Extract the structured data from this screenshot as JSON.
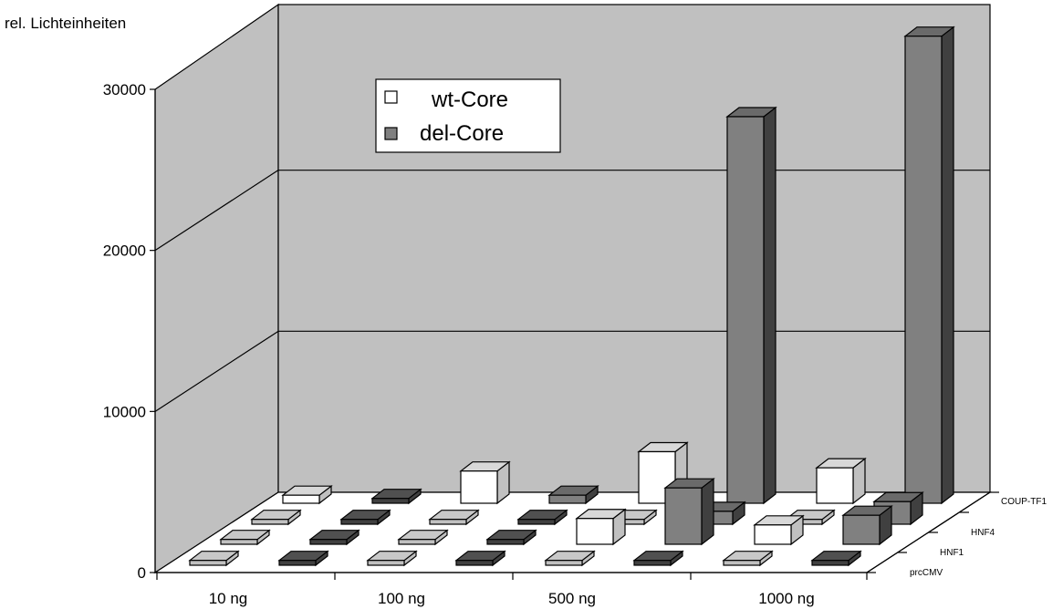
{
  "chart_data": {
    "type": "bar",
    "title": "",
    "ylabel": "rel. Lichteinheiten",
    "ylim": [
      0,
      30000
    ],
    "yticks": [
      "0",
      "10000",
      "20000",
      "30000"
    ],
    "categories": [
      "10 ng",
      "100 ng",
      "500 ng",
      "1000 ng"
    ],
    "depth_series": [
      "prcCMV",
      "HNF1",
      "HNF4",
      "COUP-TF1"
    ],
    "legend": {
      "position": "upper-left-inside",
      "entries": [
        {
          "name": "wt-Core",
          "color": "#ffffff"
        },
        {
          "name": "del-Core",
          "color": "#808080"
        }
      ]
    },
    "series": [
      {
        "name": "wt-Core",
        "depth": "prcCMV",
        "values": [
          300,
          300,
          300,
          300
        ]
      },
      {
        "name": "del-Core",
        "depth": "prcCMV",
        "values": [
          300,
          300,
          300,
          300
        ]
      },
      {
        "name": "wt-Core",
        "depth": "HNF1",
        "values": [
          300,
          300,
          1600,
          1200
        ]
      },
      {
        "name": "del-Core",
        "depth": "HNF1",
        "values": [
          300,
          300,
          3500,
          1800
        ]
      },
      {
        "name": "wt-Core",
        "depth": "HNF4",
        "values": [
          300,
          300,
          300,
          300
        ]
      },
      {
        "name": "del-Core",
        "depth": "HNF4",
        "values": [
          300,
          300,
          800,
          1400
        ]
      },
      {
        "name": "wt-Core",
        "depth": "COUP-TF1",
        "values": [
          500,
          2000,
          3200,
          2200
        ]
      },
      {
        "name": "del-Core",
        "depth": "COUP-TF1",
        "values": [
          300,
          500,
          24000,
          29000
        ]
      }
    ],
    "grid": true,
    "colors": {
      "wall": "#c0c0c0",
      "floor": "#ffffff",
      "wt_front": "#ffffff",
      "del_front": "#808080",
      "light_front": "#c0c0c0",
      "dark_front": "#404040"
    }
  }
}
